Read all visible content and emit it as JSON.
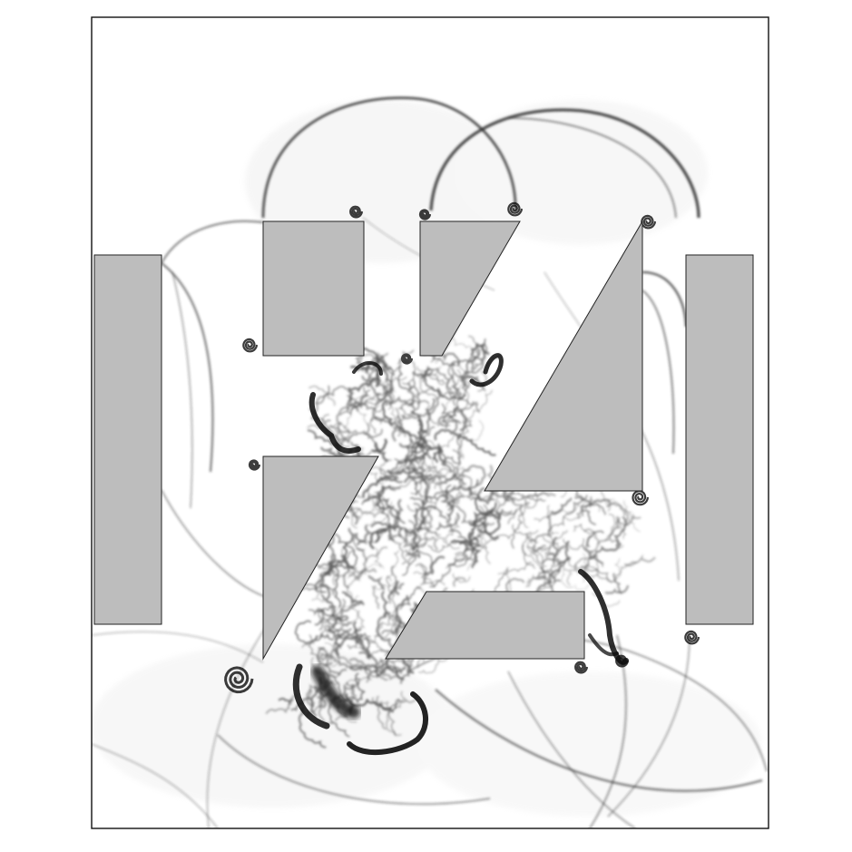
{
  "figure": {
    "colors": {
      "background": "#ffffff",
      "obstacle": "#bdbdbd",
      "frame": "#111111",
      "wave": "#2a2a2a",
      "vortex": "#0b0b0b",
      "mixing": "#555555"
    }
  }
}
